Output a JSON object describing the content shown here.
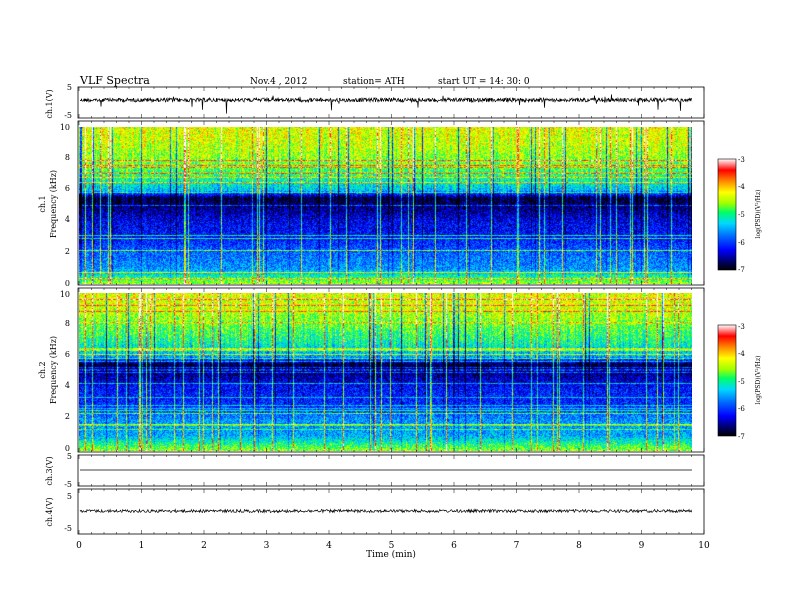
{
  "header": {
    "title": "VLF Spectra",
    "date": "Nov.4  , 2012",
    "station": "station= ATH",
    "start": "start  UT  =   14: 30: 0"
  },
  "xaxis": {
    "label": "Time  (min)",
    "ticks": [
      "0",
      "1",
      "2",
      "3",
      "4",
      "5",
      "6",
      "7",
      "8",
      "9",
      "10"
    ],
    "range": [
      0,
      10
    ]
  },
  "panels": {
    "ch1_wave": {
      "label": "ch.1(V)",
      "ticks": [
        "5",
        "-5"
      ],
      "range": [
        -5,
        5
      ]
    },
    "ch1_spec": {
      "label_ch": "ch.1",
      "label_freq": "Frequency  (kHz)",
      "ticks": [
        "0",
        "2",
        "4",
        "6",
        "8",
        "10"
      ],
      "range": [
        0,
        10
      ]
    },
    "ch2_spec": {
      "label_ch": "ch.2",
      "label_freq": "Frequency  (kHz)",
      "ticks": [
        "0",
        "2",
        "4",
        "6",
        "8",
        "10"
      ],
      "range": [
        0,
        10
      ]
    },
    "ch3_wave": {
      "label": "ch.3(V)",
      "ticks": [
        "5",
        "-5"
      ],
      "range": [
        -5,
        5
      ]
    },
    "ch4_wave": {
      "label": "ch.4(V)",
      "ticks": [
        "5",
        "-5"
      ],
      "range": [
        -5,
        5
      ]
    }
  },
  "colorbar": {
    "label": "log(PSD)(V²/Hz)",
    "ticks": [
      "-3",
      "-4",
      "-5",
      "-6",
      "-7"
    ],
    "range": [
      -7,
      -3
    ],
    "colors": [
      "#000000",
      "#00006e",
      "#0000ff",
      "#0066ff",
      "#00d8ff",
      "#00ff66",
      "#a0ff00",
      "#ffff00",
      "#ff8800",
      "#ff0000",
      "#ffffff"
    ]
  },
  "chart_data": {
    "type": "heatmap",
    "title": "VLF Spectra",
    "xlabel": "Time  (min)",
    "ylabel": "Frequency  (kHz)",
    "xlim": [
      0,
      9.8
    ],
    "ylim": [
      0,
      10
    ],
    "zlim": [
      -7,
      -3
    ],
    "series": [
      {
        "name": "ch.1",
        "band_levels_kHz_to_logPSD": [
          [
            0.3,
            -4.8
          ],
          [
            1.0,
            -5.6
          ],
          [
            2.0,
            -5.8
          ],
          [
            3.0,
            -6.2
          ],
          [
            4.0,
            -6.3
          ],
          [
            5.5,
            -6.9
          ],
          [
            6.0,
            -5.4
          ],
          [
            7.0,
            -4.9
          ],
          [
            8.0,
            -4.6
          ],
          [
            9.0,
            -4.4
          ],
          [
            10.0,
            -4.3
          ]
        ]
      },
      {
        "name": "ch.2",
        "band_levels_kHz_to_logPSD": [
          [
            0.3,
            -4.8
          ],
          [
            1.0,
            -5.5
          ],
          [
            2.0,
            -5.6
          ],
          [
            3.0,
            -6.1
          ],
          [
            4.0,
            -6.2
          ],
          [
            5.5,
            -6.9
          ],
          [
            6.0,
            -5.5
          ],
          [
            7.0,
            -5.0
          ],
          [
            8.0,
            -4.7
          ],
          [
            9.0,
            -4.4
          ],
          [
            10.0,
            -4.3
          ]
        ]
      }
    ]
  }
}
